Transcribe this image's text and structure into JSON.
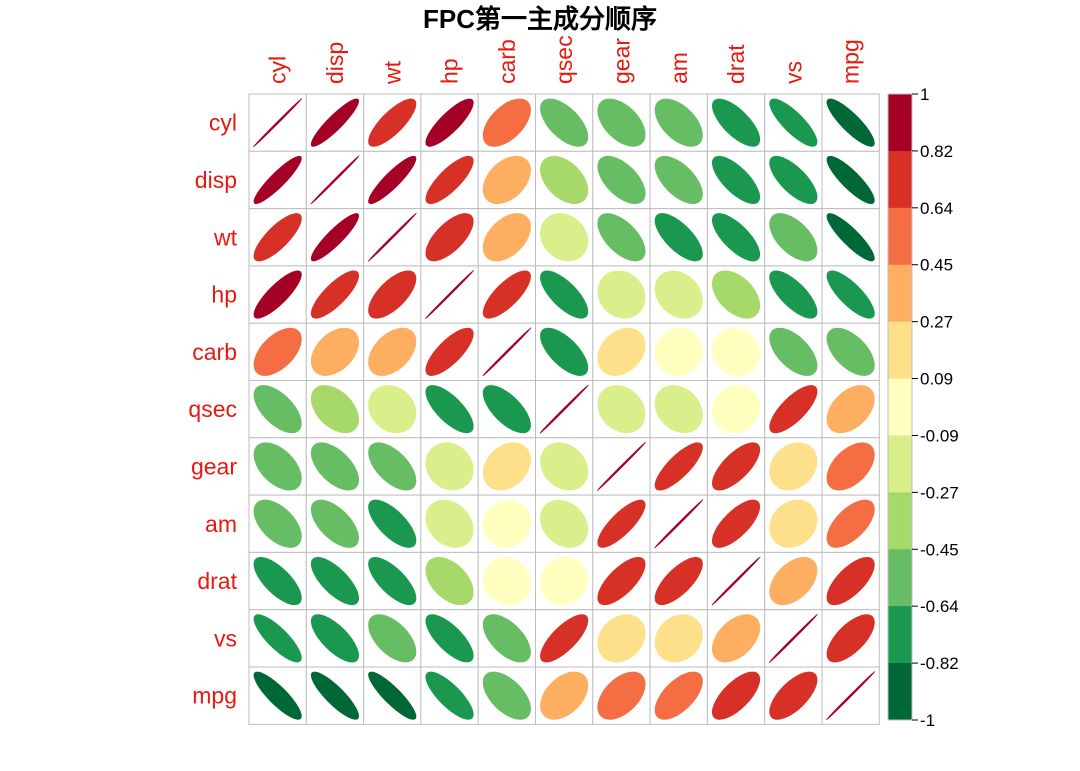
{
  "chart_data": {
    "type": "heatmap",
    "method": "ellipse",
    "title": "FPC第一主成分顺序",
    "variables": [
      "cyl",
      "disp",
      "wt",
      "hp",
      "carb",
      "qsec",
      "gear",
      "am",
      "drat",
      "vs",
      "mpg"
    ],
    "matrix": [
      [
        1.0,
        0.9,
        0.78,
        0.83,
        0.53,
        -0.59,
        -0.49,
        -0.52,
        -0.7,
        -0.81,
        -0.85
      ],
      [
        0.9,
        1.0,
        0.89,
        0.79,
        0.39,
        -0.43,
        -0.56,
        -0.59,
        -0.71,
        -0.71,
        -0.85
      ],
      [
        0.78,
        0.89,
        1.0,
        0.66,
        0.43,
        -0.17,
        -0.58,
        -0.69,
        -0.71,
        -0.55,
        -0.87
      ],
      [
        0.83,
        0.79,
        0.66,
        1.0,
        0.75,
        -0.71,
        -0.13,
        -0.24,
        -0.45,
        -0.72,
        -0.78
      ],
      [
        0.53,
        0.39,
        0.43,
        0.75,
        1.0,
        -0.66,
        0.27,
        0.06,
        -0.09,
        -0.57,
        -0.55
      ],
      [
        -0.59,
        -0.43,
        -0.17,
        -0.71,
        -0.66,
        1.0,
        -0.21,
        -0.23,
        0.09,
        0.74,
        0.42
      ],
      [
        -0.49,
        -0.56,
        -0.58,
        -0.13,
        0.27,
        -0.21,
        1.0,
        0.79,
        0.7,
        0.21,
        0.48
      ],
      [
        -0.52,
        -0.59,
        -0.69,
        -0.24,
        0.06,
        -0.23,
        0.79,
        1.0,
        0.71,
        0.17,
        0.6
      ],
      [
        -0.7,
        -0.71,
        -0.71,
        -0.45,
        -0.09,
        0.09,
        0.7,
        0.71,
        1.0,
        0.44,
        0.68
      ],
      [
        -0.81,
        -0.71,
        -0.55,
        -0.72,
        -0.57,
        0.74,
        0.21,
        0.17,
        0.44,
        1.0,
        0.66
      ],
      [
        -0.85,
        -0.85,
        -0.87,
        -0.78,
        -0.55,
        0.42,
        0.48,
        0.6,
        0.68,
        0.66,
        1.0
      ]
    ],
    "colorbar": {
      "ticks": [
        "1",
        "0.82",
        "0.64",
        "0.45",
        "0.27",
        "0.09",
        "-0.09",
        "-0.27",
        "-0.45",
        "-0.64",
        "-0.82",
        "-1"
      ],
      "colors_top_to_bottom": [
        "#A50026",
        "#D73027",
        "#F46D43",
        "#FDAE61",
        "#FEE08B",
        "#FFFFBF",
        "#D9EF8B",
        "#A6D96A",
        "#66BD63",
        "#1A9850",
        "#006837"
      ]
    },
    "label_color": "#E8190F",
    "grid_color": "#BEBEBE"
  }
}
